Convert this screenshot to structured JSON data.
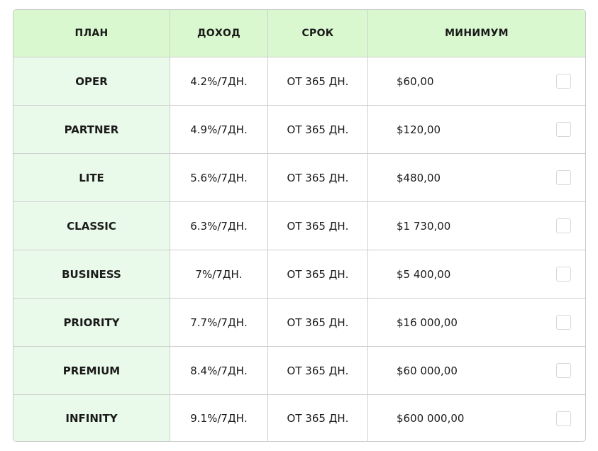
{
  "header": {
    "plan": "ПЛАН",
    "income": "ДОХОД",
    "term": "СРОК",
    "minimum": "МИНИМУМ"
  },
  "rows": [
    {
      "plan": "OPER",
      "income": "4.2%/7ДН.",
      "term": "ОТ 365 ДН.",
      "minimum": "$60,00",
      "checked": false
    },
    {
      "plan": "PARTNER",
      "income": "4.9%/7ДН.",
      "term": "ОТ 365 ДН.",
      "minimum": "$120,00",
      "checked": false
    },
    {
      "plan": "LITE",
      "income": "5.6%/7ДН.",
      "term": "ОТ 365 ДН.",
      "minimum": "$480,00",
      "checked": false
    },
    {
      "plan": "CLASSIC",
      "income": "6.3%/7ДН.",
      "term": "ОТ 365 ДН.",
      "minimum": "$1 730,00",
      "checked": false
    },
    {
      "plan": "BUSINESS",
      "income": "7%/7ДН.",
      "term": "ОТ 365 ДН.",
      "minimum": "$5 400,00",
      "checked": false
    },
    {
      "plan": "PRIORITY",
      "income": "7.7%/7ДН.",
      "term": "ОТ 365 ДН.",
      "minimum": "$16 000,00",
      "checked": false
    },
    {
      "plan": "PREMIUM",
      "income": "8.4%/7ДН.",
      "term": "ОТ 365 ДН.",
      "minimum": "$60 000,00",
      "checked": false
    },
    {
      "plan": "INFINITY",
      "income": "9.1%/7ДН.",
      "term": "ОТ 365 ДН.",
      "minimum": "$600 000,00",
      "checked": false
    }
  ],
  "colors": {
    "header_bg": "#d9f8cf",
    "plan_column_bg": "#eafaea",
    "border": "#cfcfcf"
  }
}
